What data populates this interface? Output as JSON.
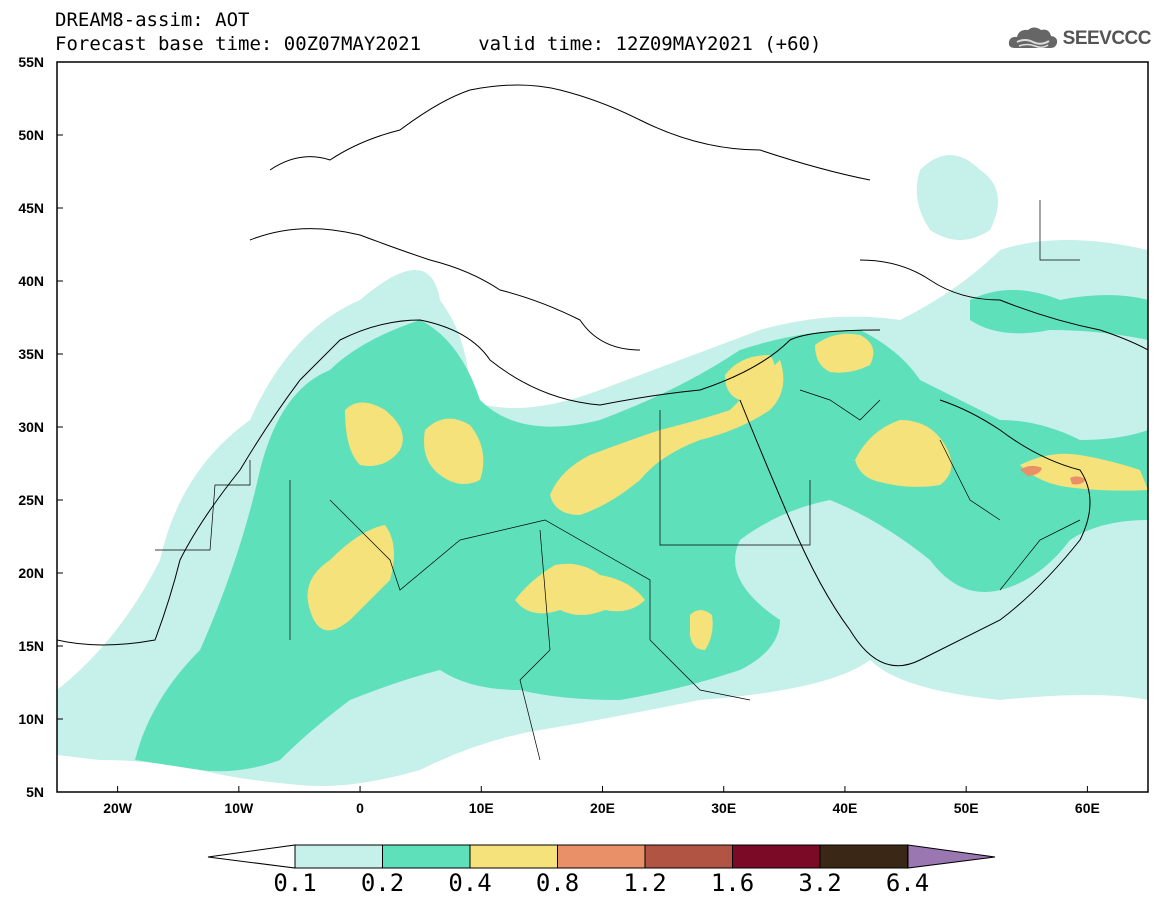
{
  "header": {
    "line1": "DREAM8-assim: AOT",
    "line2": "Forecast base time: 00Z07MAY2021     valid time: 12Z09MAY2021 (+60)"
  },
  "logo": {
    "text": "SEEVCCC",
    "icon": "cloud-icon"
  },
  "map": {
    "lat_labels": [
      "55N",
      "50N",
      "45N",
      "40N",
      "35N",
      "30N",
      "25N",
      "20N",
      "15N",
      "10N",
      "5N"
    ],
    "lon_labels": [
      "20W",
      "10W",
      "0",
      "10E",
      "20E",
      "30E",
      "40E",
      "50E",
      "60E"
    ],
    "lon_range": [
      -25,
      65
    ],
    "lat_range": [
      5,
      55
    ]
  },
  "colorbar": {
    "labels": [
      "0.1",
      "0.2",
      "0.4",
      "0.8",
      "1.2",
      "1.6",
      "3.2",
      "6.4"
    ],
    "colors": [
      "#ffffff",
      "#c6f0ea",
      "#5ee0bb",
      "#f5e27a",
      "#e99068",
      "#b25443",
      "#7a0a26",
      "#3b2716",
      "#9a77b0"
    ]
  }
}
